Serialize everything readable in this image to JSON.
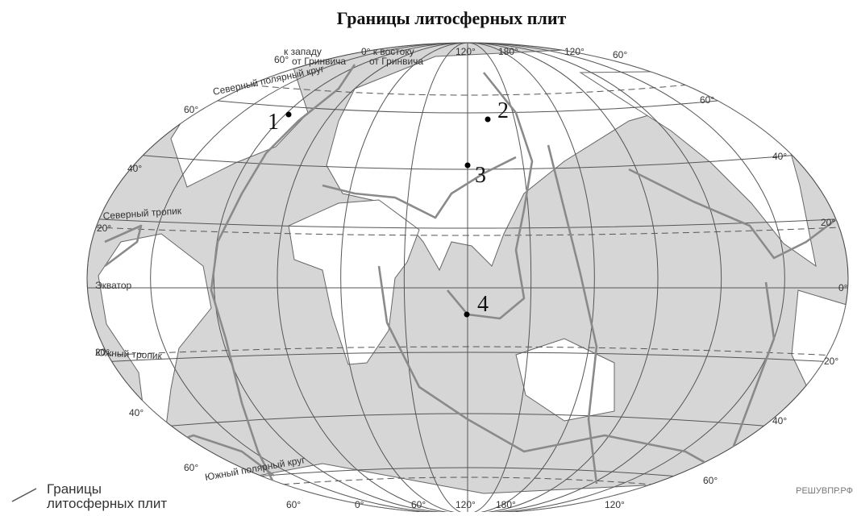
{
  "title": "Границы литосферных плит",
  "map": {
    "top_labels": [
      "к западу",
      "от Гринвича",
      "0° к востоку",
      "от Гринвича",
      "60°",
      "120°",
      "180°",
      "120°",
      "60°"
    ],
    "bottom_labels": [
      "60°",
      "0°",
      "60°",
      "120°",
      "180°",
      "120°"
    ],
    "left_labels": [
      "60°",
      "40°",
      "20°",
      "20°",
      "40°",
      "60°"
    ],
    "right_labels": [
      "60°",
      "40°",
      "20°",
      "0°",
      "20°",
      "40°",
      "60°"
    ],
    "line_labels": [
      "Северный полярный круг",
      "Северный тропик",
      "Экватор",
      "Южный тропик",
      "Южный полярный круг"
    ],
    "points": [
      "1",
      "2",
      "3",
      "4"
    ]
  },
  "legend": {
    "lines": [
      "Границы",
      "литосферных плит"
    ]
  },
  "watermark": "РЕШУВПР.РФ"
}
